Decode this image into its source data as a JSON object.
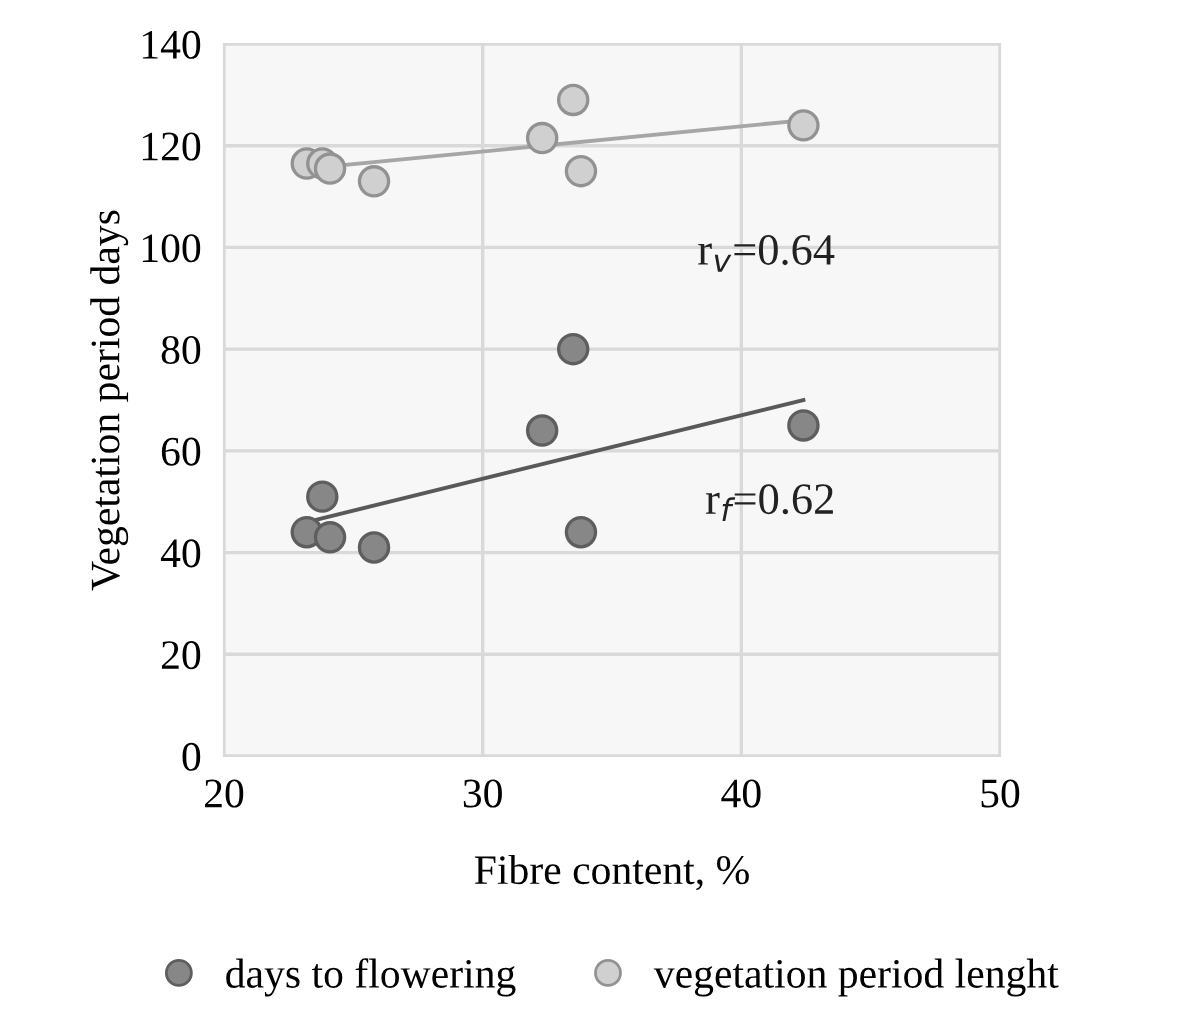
{
  "chart_data": {
    "type": "scatter",
    "xlabel": "Fibre content, %",
    "ylabel": "Vegetation period days",
    "series": [
      {
        "name": "days to flowering",
        "color": "#878787",
        "x": [
          23.2,
          23.8,
          24.1,
          25.8,
          32.3,
          33.5,
          33.8,
          42.4
        ],
        "values": [
          44,
          51,
          43,
          41,
          64,
          80,
          44,
          65
        ]
      },
      {
        "name": "vegetation period lenght",
        "color": "#d0d0d0",
        "x": [
          23.2,
          23.8,
          24.1,
          25.8,
          32.3,
          33.5,
          33.8,
          42.4
        ],
        "values": [
          116.5,
          116.5,
          115.5,
          113,
          121.5,
          129,
          115,
          124
        ]
      },
      {
        "type": "line",
        "marker": "none",
        "color": "#595959",
        "x": [
          23.2,
          42.4
        ],
        "values": [
          46,
          70
        ]
      },
      {
        "type": "line",
        "marker": "none",
        "color": "#a6a6a6",
        "x": [
          23.2,
          42.4
        ],
        "values": [
          115.5,
          125
        ]
      }
    ],
    "annotations": [
      "r$_{v}$=0.64",
      "r$_{f}$=0.62"
    ],
    "xlim": [
      20,
      50
    ],
    "ylim": [
      0,
      140
    ],
    "xticks": [
      20,
      30,
      40,
      50
    ],
    "yticks": [
      0,
      20,
      40,
      60,
      80,
      100,
      120,
      140
    ],
    "grid": true,
    "legend": "bottom",
    "marker": "circle"
  }
}
